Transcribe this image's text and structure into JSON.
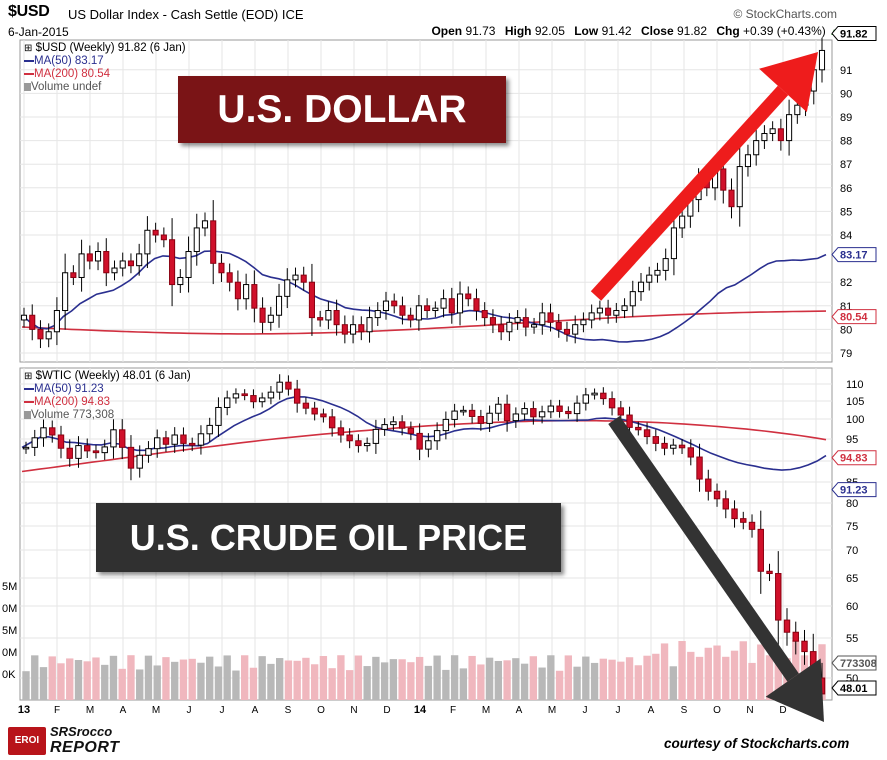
{
  "header": {
    "symbol": "$USD",
    "description": "US Dollar Index - Cash Settle (EOD) ICE",
    "source": "© StockCharts.com",
    "date": "6-Jan-2015",
    "ohlc": {
      "open_label": "Open",
      "open": "91.73",
      "high_label": "High",
      "high": "92.05",
      "low_label": "Low",
      "low": "91.42",
      "close_label": "Close",
      "close": "91.82",
      "chg_label": "Chg",
      "chg": "+0.39 (+0.43%)"
    }
  },
  "dollar_panel": {
    "overlay_title": "U.S. DOLLAR",
    "legend": {
      "line1": "$USD (Weekly) 91.82 (6 Jan)",
      "ma50": "MA(50) 83.17",
      "ma200": "MA(200) 80.54",
      "volume": "Volume undef"
    },
    "last_price_tag": "91.82",
    "ma50_tag": "83.17",
    "ma200_tag": "80.54",
    "y_ticks": [
      "79",
      "80",
      "81",
      "82",
      "84",
      "85",
      "86",
      "87",
      "88",
      "89",
      "90",
      "91"
    ]
  },
  "oil_panel": {
    "overlay_title": "U.S. CRUDE OIL PRICE",
    "legend": {
      "line1": "$WTIC (Weekly) 48.01 (6 Jan)",
      "ma50": "MA(50) 91.23",
      "ma200": "MA(200) 94.83",
      "volume": "Volume 773,308"
    },
    "last_price_tag": "48.01",
    "ma50_tag": "91.23",
    "ma200_tag": "94.83",
    "volume_tag": "773308",
    "y_ticks": [
      "50",
      "55",
      "60",
      "65",
      "70",
      "75",
      "80",
      "85",
      "90",
      "95",
      "100",
      "105",
      "110"
    ],
    "volume_ticks": [
      "5M",
      "0M",
      "5M",
      "0M",
      "0K"
    ]
  },
  "x_axis": {
    "labels": [
      "13",
      "F",
      "M",
      "A",
      "M",
      "J",
      "J",
      "A",
      "S",
      "O",
      "N",
      "D",
      "14",
      "F",
      "M",
      "A",
      "M",
      "J",
      "J",
      "A",
      "S",
      "O",
      "N",
      "D",
      "15"
    ]
  },
  "footer": {
    "logo_badge": "EROI",
    "logo_top": "SRSrocco",
    "logo_bottom": "REPORT",
    "credit": "courtesy of Stockcharts.com"
  },
  "colors": {
    "up_candle": "#ffffff",
    "down_candle": "#d0102a",
    "ma50": "#2a2f8f",
    "ma200": "#d03040",
    "dollar_box": "#7a1416",
    "oil_box": "#303030",
    "red_arrow": "#ee1c1c",
    "black_arrow": "#333333",
    "volume_up": "#b8b8b8",
    "volume_down": "#f0b7be"
  },
  "chart_data": [
    {
      "type": "candlestick",
      "title": "$USD (Weekly)",
      "interval": "weekly",
      "x_start": "2013-01",
      "x_end": "2015-01-06",
      "ylim": [
        79,
        92
      ],
      "close_series": [
        80.6,
        80.0,
        79.6,
        79.9,
        80.8,
        82.4,
        82.2,
        83.2,
        82.9,
        83.3,
        82.4,
        82.6,
        82.9,
        82.7,
        83.2,
        84.2,
        84.0,
        83.8,
        81.9,
        82.2,
        83.3,
        84.3,
        84.6,
        82.8,
        82.4,
        82.0,
        81.3,
        81.9,
        80.9,
        80.3,
        80.6,
        81.4,
        82.1,
        82.3,
        82.0,
        80.5,
        80.4,
        80.8,
        80.2,
        79.8,
        80.2,
        79.9,
        80.5,
        80.8,
        81.2,
        81.0,
        80.6,
        80.4,
        81.0,
        80.8,
        80.9,
        81.3,
        80.7,
        81.5,
        81.3,
        80.8,
        80.5,
        80.2,
        79.9,
        80.3,
        80.5,
        80.1,
        80.2,
        80.7,
        80.3,
        80.0,
        79.8,
        80.2,
        80.4,
        80.7,
        80.9,
        80.6,
        80.8,
        81.0,
        81.6,
        82.0,
        82.3,
        82.5,
        83.0,
        84.3,
        84.8,
        85.5,
        86.3,
        86.0,
        86.8,
        85.9,
        85.2,
        86.9,
        87.4,
        88.0,
        88.3,
        88.5,
        88.0,
        89.1,
        89.5,
        90.1,
        91.0,
        91.82
      ],
      "ma50": {
        "name": "MA(50)",
        "last": 83.17
      },
      "ma200": {
        "name": "MA(200)",
        "last": 80.54
      },
      "last": 91.82
    },
    {
      "type": "candlestick",
      "title": "$WTIC (Weekly)",
      "interval": "weekly",
      "x_start": "2013-01",
      "x_end": "2015-01-06",
      "ylim": [
        48,
        112
      ],
      "close_series": [
        93.1,
        95.3,
        97.8,
        96.0,
        92.9,
        90.6,
        93.5,
        92.3,
        91.9,
        93.2,
        97.3,
        93.1,
        88.3,
        91.3,
        92.8,
        95.3,
        93.8,
        96.0,
        94.0,
        93.6,
        96.3,
        98.4,
        103.2,
        105.9,
        107.1,
        106.6,
        104.8,
        105.9,
        107.6,
        110.5,
        108.5,
        104.4,
        103.0,
        101.4,
        100.6,
        97.8,
        96.0,
        94.6,
        93.5,
        94.0,
        97.4,
        98.6,
        99.3,
        97.7,
        96.4,
        92.7,
        94.6,
        97.1,
        99.9,
        102.2,
        102.4,
        100.7,
        98.9,
        101.6,
        104.1,
        99.6,
        101.4,
        102.9,
        100.6,
        102.0,
        103.6,
        102.1,
        101.5,
        104.4,
        106.8,
        107.3,
        105.7,
        103.1,
        101.1,
        97.9,
        97.3,
        95.6,
        94.0,
        92.9,
        93.6,
        93.0,
        90.9,
        85.7,
        82.8,
        81.0,
        78.7,
        76.6,
        75.8,
        74.3,
        66.2,
        65.8,
        57.8,
        55.9,
        54.6,
        53.3,
        50.0,
        48.01
      ],
      "ma50": {
        "name": "MA(50)",
        "last": 91.23
      },
      "ma200": {
        "name": "MA(200)",
        "last": 94.83
      },
      "last": 48.01
    }
  ]
}
